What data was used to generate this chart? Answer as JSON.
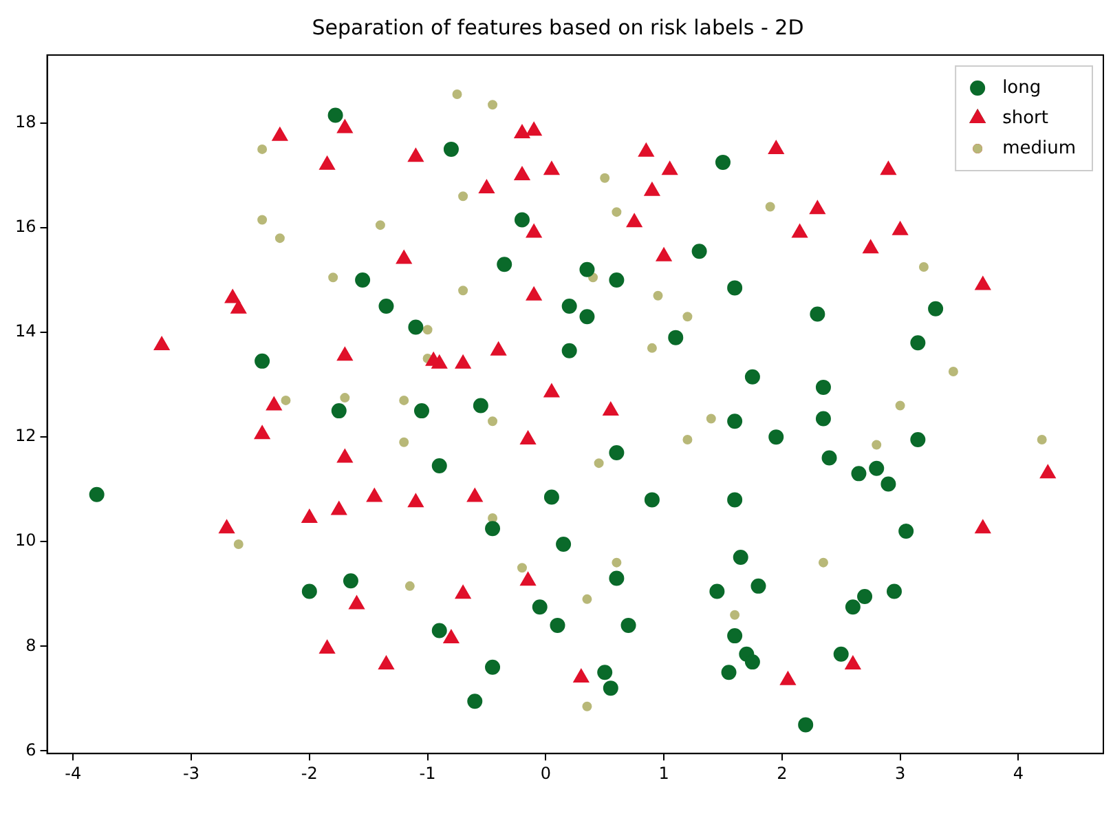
{
  "chart_data": {
    "type": "scatter",
    "title": "Separation of features based on risk labels - 2D",
    "xlim": [
      -4.22,
      4.72
    ],
    "ylim": [
      5.95,
      19.3
    ],
    "xticks": [
      -4,
      -3,
      -2,
      -1,
      0,
      1,
      2,
      3,
      4
    ],
    "yticks": [
      6,
      8,
      10,
      12,
      14,
      16,
      18
    ],
    "grid": false,
    "legend": "top right",
    "series": [
      {
        "name": "long",
        "color": "#0a6a2a",
        "marker": "circle",
        "x": [
          -3.8,
          -1.78,
          -0.8,
          -0.2,
          -0.35,
          1.5,
          -1.55,
          -1.35,
          -1.1,
          -2.4,
          -1.75,
          -1.05,
          0.35,
          0.6,
          0.2,
          0.35,
          1.3,
          1.6,
          1.1,
          0.2,
          2.3,
          3.3,
          3.15,
          1.75,
          2.35,
          2.35,
          1.6,
          2.4,
          3.15,
          1.95,
          -0.55,
          -0.9,
          0.6,
          2.65,
          2.8,
          2.9,
          0.05,
          0.9,
          1.6,
          3.05,
          -0.45,
          0.15,
          1.65,
          -1.65,
          0.6,
          -2.0,
          1.45,
          1.8,
          2.7,
          2.95,
          2.6,
          -0.05,
          0.1,
          0.7,
          1.6,
          1.7,
          1.75,
          -0.9,
          -0.45,
          2.5,
          1.55,
          0.5,
          0.55,
          -0.6,
          2.2
        ],
        "values": [
          10.9,
          18.15,
          17.5,
          16.15,
          15.3,
          17.25,
          15.0,
          14.5,
          14.1,
          13.45,
          12.5,
          12.5,
          15.2,
          15.0,
          14.5,
          14.3,
          15.55,
          14.85,
          13.9,
          13.65,
          14.35,
          14.45,
          13.8,
          13.15,
          12.95,
          12.35,
          12.3,
          11.6,
          11.95,
          12.0,
          12.6,
          11.45,
          11.7,
          11.3,
          11.4,
          11.1,
          10.85,
          10.8,
          10.8,
          10.2,
          10.25,
          9.95,
          9.7,
          9.25,
          9.3,
          9.05,
          9.05,
          9.15,
          8.95,
          9.05,
          8.75,
          8.75,
          8.4,
          8.4,
          8.2,
          7.85,
          7.7,
          8.3,
          7.6,
          7.85,
          7.5,
          7.5,
          7.2,
          6.95,
          6.5
        ]
      },
      {
        "name": "short",
        "color": "#e0102a",
        "marker": "triangle",
        "x": [
          -1.7,
          -2.25,
          -1.85,
          -0.2,
          -0.1,
          -1.1,
          -0.5,
          -0.2,
          0.05,
          0.85,
          1.05,
          0.9,
          1.95,
          2.9,
          2.3,
          -0.1,
          0.75,
          2.15,
          1.0,
          3.0,
          2.75,
          -1.2,
          -2.65,
          -2.6,
          -0.1,
          3.7,
          -3.25,
          -1.7,
          -0.9,
          -0.7,
          -0.4,
          -0.95,
          -2.3,
          0.05,
          0.55,
          -2.4,
          -0.15,
          -1.7,
          -1.45,
          -1.1,
          -0.6,
          -1.75,
          -2.0,
          -2.7,
          3.7,
          4.25,
          -0.15,
          -1.6,
          -0.7,
          -0.8,
          -1.85,
          -1.35,
          0.3,
          2.05,
          2.6
        ],
        "values": [
          17.9,
          17.75,
          17.2,
          17.8,
          17.85,
          17.35,
          16.75,
          17.0,
          17.1,
          17.45,
          17.1,
          16.7,
          17.5,
          17.1,
          16.35,
          15.9,
          16.1,
          15.9,
          15.45,
          15.95,
          15.6,
          15.4,
          14.65,
          14.45,
          14.7,
          14.9,
          13.75,
          13.55,
          13.4,
          13.4,
          13.65,
          13.45,
          12.6,
          12.85,
          12.5,
          12.05,
          11.95,
          11.6,
          10.85,
          10.75,
          10.85,
          10.6,
          10.45,
          10.25,
          10.25,
          11.3,
          9.25,
          8.8,
          9.0,
          8.15,
          7.95,
          7.65,
          7.4,
          7.35,
          7.65
        ]
      },
      {
        "name": "medium",
        "color": "#b8b878",
        "marker": "circle",
        "x": [
          -0.75,
          -0.45,
          -2.4,
          -2.4,
          -2.25,
          -1.4,
          -1.8,
          -0.7,
          0.5,
          0.6,
          0.4,
          -0.7,
          1.9,
          3.2,
          1.2,
          0.95,
          0.9,
          -1.0,
          -1.7,
          -2.2,
          -1.2,
          -1.0,
          -0.45,
          -1.2,
          0.45,
          1.2,
          1.4,
          2.8,
          3.0,
          3.45,
          4.2,
          -2.6,
          -1.15,
          -0.2,
          0.35,
          0.6,
          -0.45,
          2.35,
          1.6,
          0.35
        ],
        "values": [
          18.55,
          18.35,
          17.5,
          16.15,
          15.8,
          16.05,
          15.05,
          16.6,
          16.95,
          16.3,
          15.05,
          14.8,
          16.4,
          15.25,
          14.3,
          14.7,
          13.7,
          14.05,
          12.75,
          12.7,
          12.7,
          13.5,
          12.3,
          11.9,
          11.5,
          11.95,
          12.35,
          11.85,
          12.6,
          13.25,
          11.95,
          9.95,
          9.15,
          9.5,
          8.9,
          9.6,
          10.45,
          9.6,
          8.6,
          6.85
        ]
      }
    ]
  }
}
